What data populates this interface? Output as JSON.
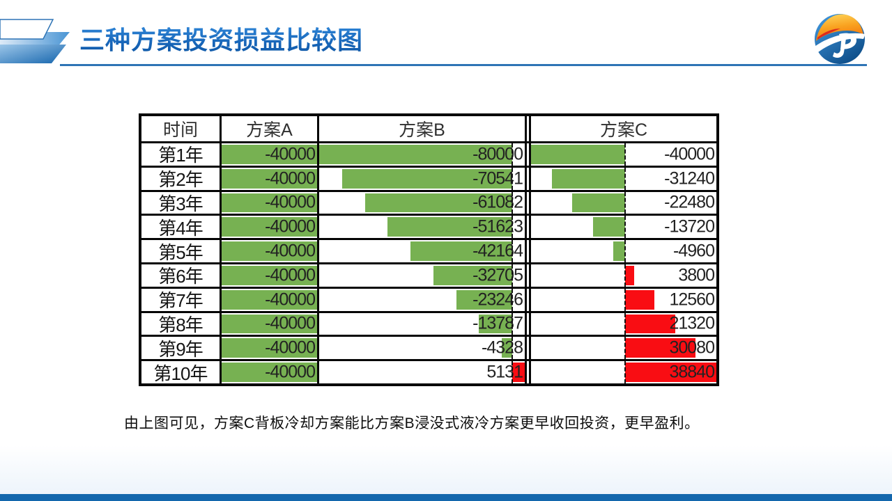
{
  "slide": {
    "title": "三种方案投资损益比较图",
    "caption": "由上图可见，方案C背板冷却方案能比方案B浸没式液冷方案更早收回投资，更早盈利。"
  },
  "colors": {
    "title_blue": "#1a6cc4",
    "underline_blue": "#2e74b5",
    "footer_bar_blue": "#1367ad",
    "bar_negative_green": "#77b152",
    "bar_positive_red": "#f90d13",
    "table_border_black": "#050505",
    "value_text": "#222222"
  },
  "chart_data": {
    "type": "table",
    "title": "三种方案投资损益比较图",
    "description": "Excel-style table with in-cell data bars; green bars extend left of a dashed zero axis for losses, red bars extend right for profits",
    "columns": [
      {
        "key": "time",
        "label": "时间"
      },
      {
        "key": "planA",
        "label": "方案A"
      },
      {
        "key": "planB",
        "label": "方案B"
      },
      {
        "key": "planC",
        "label": "方案C"
      }
    ],
    "rows": [
      {
        "time": "第1年",
        "planA": -40000,
        "planB": -80000,
        "planC": -40000
      },
      {
        "time": "第2年",
        "planA": -40000,
        "planB": -70541,
        "planC": -31240
      },
      {
        "time": "第3年",
        "planA": -40000,
        "planB": -61082,
        "planC": -22480
      },
      {
        "time": "第4年",
        "planA": -40000,
        "planB": -51623,
        "planC": -13720
      },
      {
        "time": "第5年",
        "planA": -40000,
        "planB": -42164,
        "planC": -4960
      },
      {
        "time": "第6年",
        "planA": -40000,
        "planB": -32705,
        "planC": 3800
      },
      {
        "time": "第7年",
        "planA": -40000,
        "planB": -23246,
        "planC": 12560
      },
      {
        "time": "第8年",
        "planA": -40000,
        "planB": -13787,
        "planC": 21320
      },
      {
        "time": "第9年",
        "planA": -40000,
        "planB": -4328,
        "planC": 30080
      },
      {
        "time": "第10年",
        "planA": -40000,
        "planB": 5131,
        "planC": 38840
      }
    ],
    "databar_axes": {
      "planA": {
        "min": -40000,
        "max": -40000,
        "full_bar": true,
        "axis_line": false
      },
      "planB": {
        "min": -80000,
        "max": 5131,
        "full_bar": false,
        "axis_line": true
      },
      "planC": {
        "min": -40000,
        "max": 38840,
        "full_bar": false,
        "axis_line": true
      }
    }
  }
}
